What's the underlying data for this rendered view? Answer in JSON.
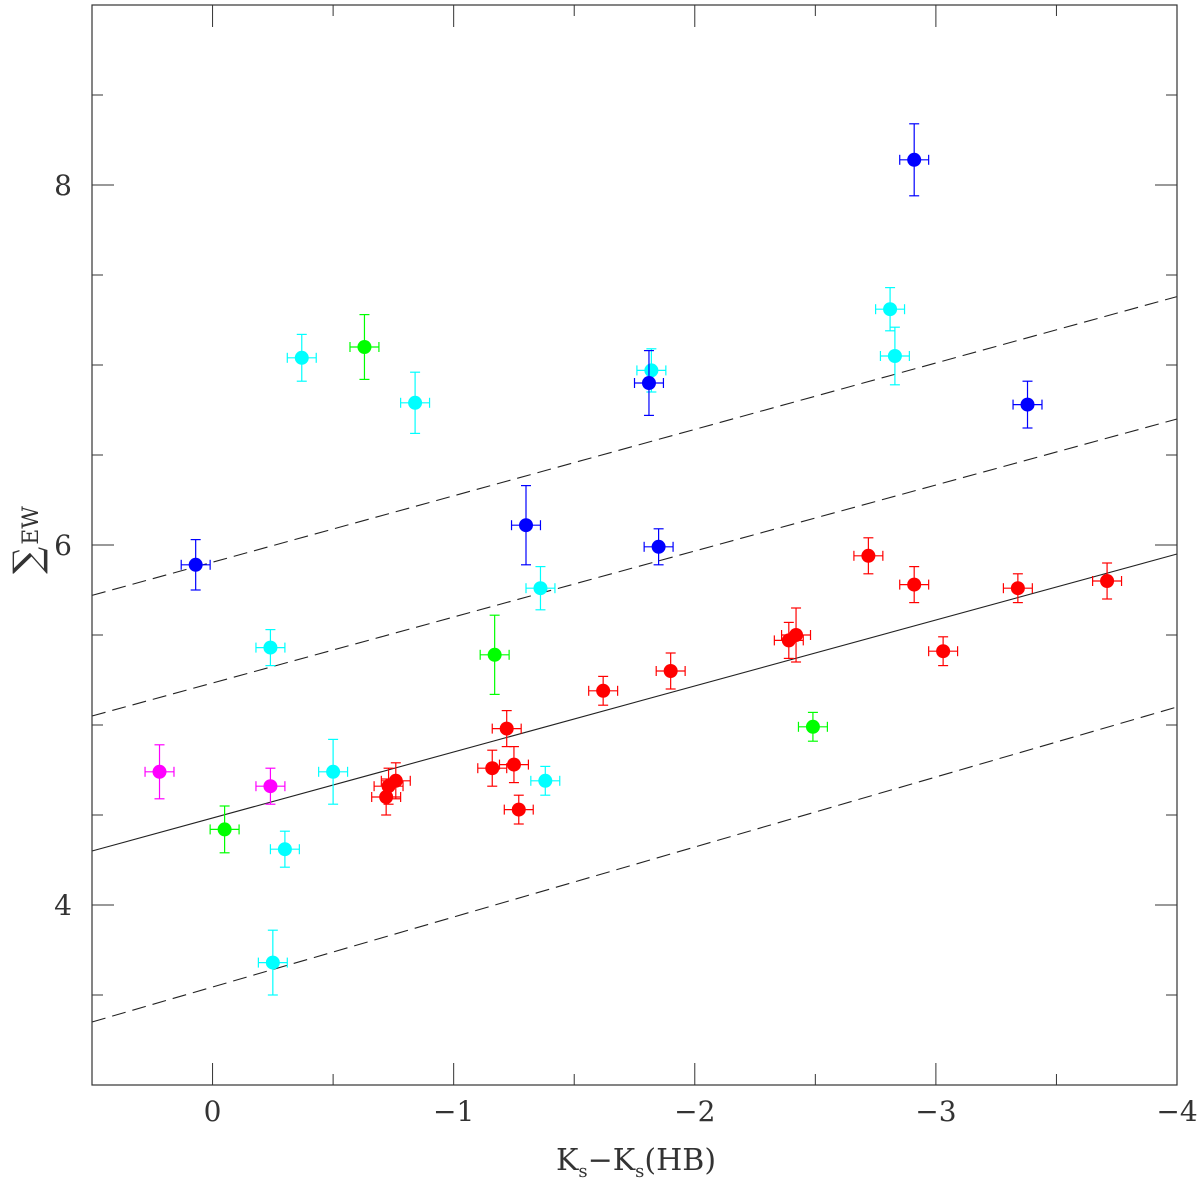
{
  "chart_data": {
    "type": "scatter",
    "title": "",
    "xlabel": "K",
    "xlabel_sub": "s",
    "xlabel_mid": "−K",
    "xlabel_sub2": "s",
    "xlabel_tail": "(HB)",
    "ylabel_symbol": "∑",
    "ylabel_text": "EW",
    "xlim": [
      0.5,
      -4.0
    ],
    "ylim": [
      3.0,
      9.0
    ],
    "xticks": [
      {
        "value": 0,
        "label": "0"
      },
      {
        "value": -1,
        "label": "−1"
      },
      {
        "value": -2,
        "label": "−2"
      },
      {
        "value": -3,
        "label": "−3"
      },
      {
        "value": -4,
        "label": "−4"
      }
    ],
    "yticks": [
      {
        "value": 4,
        "label": "4"
      },
      {
        "value": 6,
        "label": "6"
      },
      {
        "value": 8,
        "label": "8"
      }
    ],
    "x_minor_step": 0.1,
    "y_minor_step": 0.5,
    "lines": [
      {
        "name": "fit",
        "style": "solid",
        "x": [
          0.5,
          -4.0
        ],
        "y": [
          4.3,
          5.95
        ]
      },
      {
        "name": "upper-offset-1",
        "style": "dashed",
        "x": [
          0.5,
          -4.0
        ],
        "y": [
          5.05,
          6.7
        ]
      },
      {
        "name": "upper-offset-2",
        "style": "dashed",
        "x": [
          0.5,
          -4.0
        ],
        "y": [
          5.72,
          7.38
        ]
      },
      {
        "name": "lower-offset",
        "style": "dashed",
        "x": [
          0.5,
          -4.0
        ],
        "y": [
          3.35,
          5.1
        ]
      }
    ],
    "series": [
      {
        "name": "red",
        "color": "#ff0000",
        "points": [
          {
            "x": -0.72,
            "y": 4.6,
            "ex": 0.06,
            "ey": 0.1
          },
          {
            "x": -0.73,
            "y": 4.66,
            "ex": 0.06,
            "ey": 0.1
          },
          {
            "x": -0.76,
            "y": 4.69,
            "ex": 0.06,
            "ey": 0.1
          },
          {
            "x": -1.16,
            "y": 4.76,
            "ex": 0.06,
            "ey": 0.1
          },
          {
            "x": -1.22,
            "y": 4.98,
            "ex": 0.06,
            "ey": 0.1
          },
          {
            "x": -1.25,
            "y": 4.78,
            "ex": 0.06,
            "ey": 0.1
          },
          {
            "x": -1.27,
            "y": 4.53,
            "ex": 0.06,
            "ey": 0.08
          },
          {
            "x": -1.62,
            "y": 5.19,
            "ex": 0.06,
            "ey": 0.08
          },
          {
            "x": -1.9,
            "y": 5.3,
            "ex": 0.06,
            "ey": 0.1
          },
          {
            "x": -2.39,
            "y": 5.47,
            "ex": 0.06,
            "ey": 0.1
          },
          {
            "x": -2.42,
            "y": 5.5,
            "ex": 0.06,
            "ey": 0.15
          },
          {
            "x": -2.72,
            "y": 5.94,
            "ex": 0.06,
            "ey": 0.1
          },
          {
            "x": -2.91,
            "y": 5.78,
            "ex": 0.06,
            "ey": 0.1
          },
          {
            "x": -3.03,
            "y": 5.41,
            "ex": 0.06,
            "ey": 0.08
          },
          {
            "x": -3.34,
            "y": 5.76,
            "ex": 0.06,
            "ey": 0.08
          },
          {
            "x": -3.71,
            "y": 5.8,
            "ex": 0.06,
            "ey": 0.1
          }
        ]
      },
      {
        "name": "cyan",
        "color": "#00ffff",
        "points": [
          {
            "x": -0.37,
            "y": 7.04,
            "ex": 0.06,
            "ey": 0.13
          },
          {
            "x": -0.84,
            "y": 6.79,
            "ex": 0.06,
            "ey": 0.17
          },
          {
            "x": -0.24,
            "y": 5.43,
            "ex": 0.06,
            "ey": 0.1
          },
          {
            "x": -0.5,
            "y": 4.74,
            "ex": 0.06,
            "ey": 0.18
          },
          {
            "x": -0.3,
            "y": 4.31,
            "ex": 0.06,
            "ey": 0.1
          },
          {
            "x": -0.25,
            "y": 3.68,
            "ex": 0.06,
            "ey": 0.18
          },
          {
            "x": -1.36,
            "y": 5.76,
            "ex": 0.06,
            "ey": 0.12
          },
          {
            "x": -1.38,
            "y": 4.69,
            "ex": 0.06,
            "ey": 0.08
          },
          {
            "x": -1.82,
            "y": 6.97,
            "ex": 0.06,
            "ey": 0.12
          },
          {
            "x": -2.81,
            "y": 7.31,
            "ex": 0.06,
            "ey": 0.12
          },
          {
            "x": -2.83,
            "y": 7.05,
            "ex": 0.06,
            "ey": 0.16
          }
        ]
      },
      {
        "name": "blue",
        "color": "#0000ff",
        "points": [
          {
            "x": 0.07,
            "y": 5.89,
            "ex": 0.06,
            "ey": 0.14
          },
          {
            "x": -1.3,
            "y": 6.11,
            "ex": 0.06,
            "ey": 0.22
          },
          {
            "x": -1.81,
            "y": 6.9,
            "ex": 0.06,
            "ey": 0.18
          },
          {
            "x": -1.85,
            "y": 5.99,
            "ex": 0.06,
            "ey": 0.1
          },
          {
            "x": -2.91,
            "y": 8.14,
            "ex": 0.06,
            "ey": 0.2
          },
          {
            "x": -3.38,
            "y": 6.78,
            "ex": 0.06,
            "ey": 0.13
          }
        ]
      },
      {
        "name": "green",
        "color": "#00ff00",
        "points": [
          {
            "x": -0.63,
            "y": 7.1,
            "ex": 0.06,
            "ey": 0.18
          },
          {
            "x": -0.05,
            "y": 4.42,
            "ex": 0.06,
            "ey": 0.13
          },
          {
            "x": -1.17,
            "y": 5.39,
            "ex": 0.06,
            "ey": 0.22
          },
          {
            "x": -2.49,
            "y": 4.99,
            "ex": 0.06,
            "ey": 0.08
          }
        ]
      },
      {
        "name": "magenta",
        "color": "#ff00ff",
        "points": [
          {
            "x": 0.22,
            "y": 4.74,
            "ex": 0.06,
            "ey": 0.15
          },
          {
            "x": -0.24,
            "y": 4.66,
            "ex": 0.06,
            "ey": 0.1
          }
        ]
      }
    ]
  }
}
